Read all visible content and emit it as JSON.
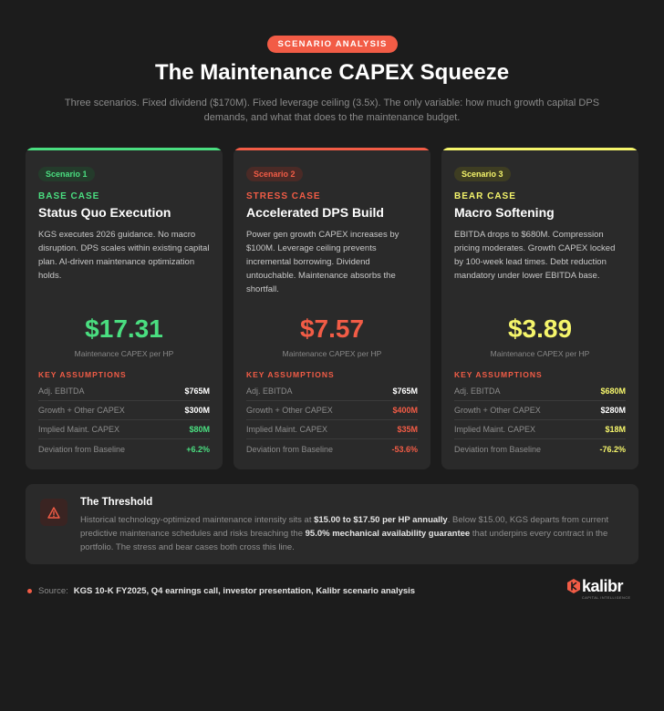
{
  "header": {
    "badge": "SCENARIO ANALYSIS",
    "title": "The Maintenance CAPEX Squeeze",
    "subtitle": "Three scenarios. Fixed dividend ($170M). Fixed leverage ceiling (3.5x). The only variable: how much growth capital DPS demands, and what that does to the maintenance budget."
  },
  "colors": {
    "accent": "#f25c46",
    "green": "#4ade80",
    "red": "#f25c46",
    "yellow": "#f5f56b"
  },
  "scenarios": [
    {
      "badge": "Scenario 1",
      "case_label": "BASE CASE",
      "title": "Status Quo Execution",
      "description": "KGS executes 2026 guidance. No macro disruption. DPS scales within existing capital plan. AI-driven maintenance optimization holds.",
      "value": "$17.31",
      "value_label": "Maintenance CAPEX per HP",
      "assumptions_label": "KEY ASSUMPTIONS",
      "assumptions": [
        {
          "label": "Adj. EBITDA",
          "value": "$765M"
        },
        {
          "label": "Growth + Other CAPEX",
          "value": "$300M"
        },
        {
          "label": "Implied Maint. CAPEX",
          "value": "$80M"
        },
        {
          "label": "Deviation from Baseline",
          "value": "+6.2%"
        }
      ]
    },
    {
      "badge": "Scenario 2",
      "case_label": "STRESS CASE",
      "title": "Accelerated DPS Build",
      "description": "Power gen growth CAPEX increases by $100M. Leverage ceiling prevents incremental borrowing. Dividend untouchable. Maintenance absorbs the shortfall.",
      "value": "$7.57",
      "value_label": "Maintenance CAPEX per HP",
      "assumptions_label": "KEY ASSUMPTIONS",
      "assumptions": [
        {
          "label": "Adj. EBITDA",
          "value": "$765M"
        },
        {
          "label": "Growth + Other CAPEX",
          "value": "$400M"
        },
        {
          "label": "Implied Maint. CAPEX",
          "value": "$35M"
        },
        {
          "label": "Deviation from Baseline",
          "value": "-53.6%"
        }
      ]
    },
    {
      "badge": "Scenario 3",
      "case_label": "BEAR CASE",
      "title": "Macro Softening",
      "description": "EBITDA drops to $680M. Compression pricing moderates. Growth CAPEX locked by 100-week lead times. Debt reduction mandatory under lower EBITDA base.",
      "value": "$3.89",
      "value_label": "Maintenance CAPEX per HP",
      "assumptions_label": "KEY ASSUMPTIONS",
      "assumptions": [
        {
          "label": "Adj. EBITDA",
          "value": "$680M"
        },
        {
          "label": "Growth + Other CAPEX",
          "value": "$280M"
        },
        {
          "label": "Implied Maint. CAPEX",
          "value": "$18M"
        },
        {
          "label": "Deviation from Baseline",
          "value": "-76.2%"
        }
      ]
    }
  ],
  "threshold": {
    "icon": "warning-icon",
    "title": "The Threshold",
    "text_1": "Historical technology-optimized maintenance intensity sits at ",
    "bold_1": "$15.00 to $17.50 per HP annually",
    "text_2": ". Below $15.00, KGS departs from current predictive maintenance schedules and risks breaching the ",
    "bold_2": "95.0% mechanical availability guarantee",
    "text_3": " that underpins every contract in the portfolio. The stress and bear cases both cross this line."
  },
  "footer": {
    "source_label": "Source:",
    "source_text": "KGS 10-K FY2025, Q4 earnings call, investor presentation, Kalibr scenario analysis",
    "logo_word": "kalibr",
    "logo_tagline": "CAPITAL INTELLIGENCE"
  }
}
